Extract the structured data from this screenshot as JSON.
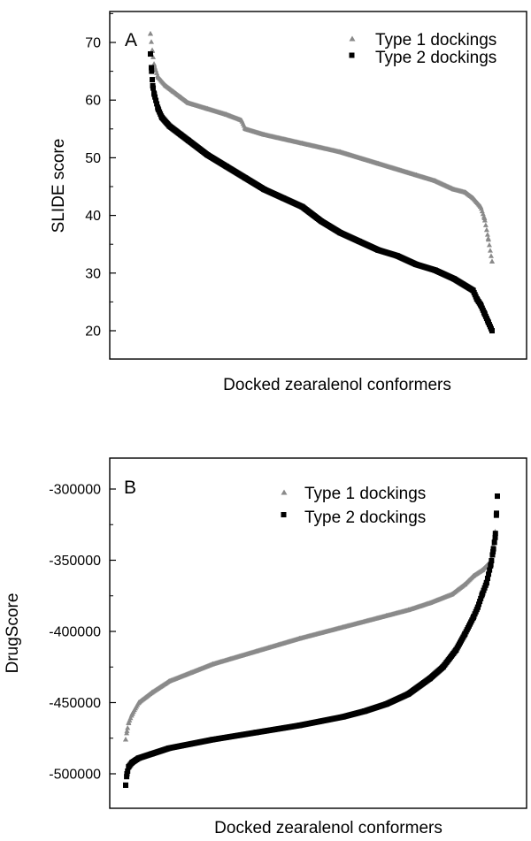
{
  "chart_data": [
    {
      "panel": "A",
      "type": "scatter",
      "xlabel": "Docked zearalenol conformers",
      "ylabel": "SLIDE score",
      "ylim": [
        15,
        75
      ],
      "yticks": [
        20,
        30,
        40,
        50,
        60,
        70
      ],
      "x_ticks_shown": false,
      "grid": false,
      "legend_position": "top-right",
      "series": [
        {
          "name": "Type 1 dockings",
          "marker": "triangle",
          "color": "#8a8a8a",
          "x": [
            0,
            0.5,
            1,
            2,
            4,
            6,
            8,
            10,
            15,
            20,
            24,
            25,
            30,
            40,
            50,
            60,
            70,
            75,
            80,
            83,
            85,
            87,
            88,
            89,
            90
          ],
          "values": [
            71.5,
            68.5,
            66,
            64,
            62.5,
            61.5,
            60.5,
            59.5,
            58.5,
            57.5,
            56.5,
            55,
            54,
            52.5,
            51,
            49,
            47,
            46,
            44.5,
            44,
            43,
            41.5,
            39.5,
            36,
            32
          ]
        },
        {
          "name": "Type 2 dockings",
          "marker": "square",
          "color": "#000000",
          "x": [
            0,
            0.3,
            0.6,
            1,
            2,
            3,
            5,
            8,
            10,
            15,
            20,
            25,
            30,
            35,
            40,
            45,
            50,
            55,
            60,
            65,
            70,
            75,
            80,
            85,
            86,
            87,
            88,
            89,
            90
          ],
          "values": [
            68,
            65,
            62.5,
            61,
            58.5,
            57,
            55.5,
            54,
            53,
            50.5,
            48.5,
            46.5,
            44.5,
            43,
            41.5,
            39,
            37,
            35.5,
            34,
            33,
            31.5,
            30.5,
            29,
            27,
            25.5,
            24.5,
            23,
            21.5,
            20
          ]
        }
      ]
    },
    {
      "panel": "B",
      "type": "scatter",
      "xlabel": "Docked zearalenol conformers",
      "ylabel": "DrugScore",
      "ylim": [
        -520000,
        -285000
      ],
      "yticks": [
        -500000,
        -450000,
        -400000,
        -350000,
        -300000
      ],
      "y_tick_labels": [
        "-500000",
        "-450000",
        "-400000",
        "-350000",
        "-300000"
      ],
      "x_ticks_shown": false,
      "grid": false,
      "legend_position": "top-center",
      "series": [
        {
          "name": "Type 1 dockings",
          "marker": "triangle",
          "color": "#8a8a8a",
          "x": [
            0,
            0.3,
            0.7,
            1.5,
            3,
            6,
            10,
            15,
            20,
            30,
            40,
            50,
            60,
            65,
            70,
            75,
            78,
            80,
            82,
            84,
            85
          ],
          "values": [
            -476000,
            -470000,
            -464000,
            -458000,
            -450000,
            -443000,
            -435000,
            -429000,
            -423000,
            -414000,
            -405000,
            -397000,
            -389000,
            -385000,
            -380000,
            -374000,
            -367000,
            -361000,
            -357000,
            -351000,
            -330000
          ]
        },
        {
          "name": "Type 2 dockings",
          "marker": "square",
          "color": "#000000",
          "x": [
            0,
            0.3,
            0.7,
            1.5,
            3,
            6,
            10,
            20,
            30,
            40,
            50,
            55,
            60,
            65,
            70,
            73,
            76,
            78,
            80,
            81,
            82,
            83,
            84,
            84.5,
            85,
            85.3,
            85.5
          ],
          "values": [
            -508000,
            -500000,
            -495000,
            -492000,
            -489000,
            -486000,
            -482000,
            -476000,
            -471000,
            -466000,
            -460000,
            -456000,
            -451000,
            -444000,
            -433000,
            -425000,
            -413000,
            -402000,
            -390000,
            -383000,
            -374000,
            -366000,
            -353000,
            -344000,
            -334000,
            -317000,
            -305000
          ]
        }
      ]
    }
  ]
}
